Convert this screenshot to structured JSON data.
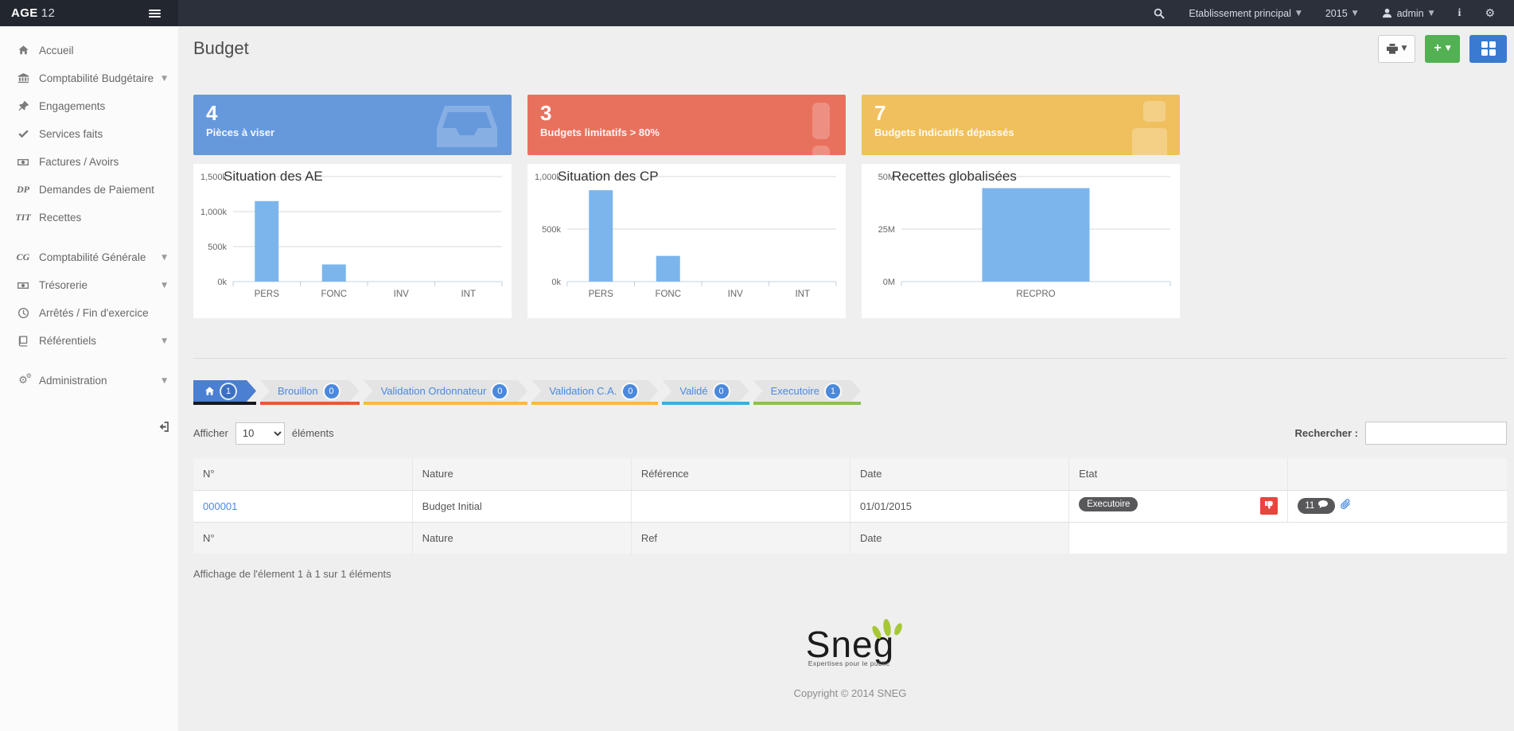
{
  "topbar": {
    "brand": "AGE",
    "brand_suffix": "12",
    "establishment": "Etablissement principal",
    "year": "2015",
    "user": "admin"
  },
  "sidebar": {
    "items": [
      {
        "id": "accueil",
        "icon": "home",
        "label": "Accueil"
      },
      {
        "id": "comptabilite-budgetaire",
        "icon": "bank",
        "label": "Comptabilité Budgétaire",
        "caret": true
      },
      {
        "id": "engagements",
        "icon": "pin",
        "label": "Engagements"
      },
      {
        "id": "services-faits",
        "icon": "check",
        "label": "Services faits"
      },
      {
        "id": "factures-avoirs",
        "icon": "money",
        "label": "Factures / Avoirs"
      },
      {
        "id": "demandes-de-paiement",
        "icon": "DP",
        "label": "Demandes de Paiement"
      },
      {
        "id": "recettes",
        "icon": "TIT",
        "label": "Recettes"
      },
      {
        "id": "comptabilite-generale",
        "icon": "CG",
        "label": "Comptabilité Générale",
        "caret": true,
        "gap": true
      },
      {
        "id": "tresorerie",
        "icon": "money",
        "label": "Trésorerie",
        "caret": true
      },
      {
        "id": "arretes-fin-exercice",
        "icon": "clock",
        "label": "Arrêtés / Fin d'exercice"
      },
      {
        "id": "referentiels",
        "icon": "book",
        "label": "Référentiels",
        "caret": true
      },
      {
        "id": "administration",
        "icon": "gears",
        "label": "Administration",
        "caret": true,
        "gap": true
      }
    ]
  },
  "header": {
    "title": "Budget"
  },
  "cards": [
    {
      "value": "4",
      "label": "Pièces à viser",
      "color": "#6699dc",
      "icon": "inbox"
    },
    {
      "value": "3",
      "label": "Budgets limitatifs > 80%",
      "color": "#e8715e",
      "icon": "thermometer"
    },
    {
      "value": "7",
      "label": "Budgets Indicatifs dépassés",
      "color": "#f0c05e",
      "icon": "blocks"
    }
  ],
  "chart_data": [
    {
      "type": "bar",
      "title": "Situation des AE",
      "categories": [
        "PERS",
        "FONC",
        "INV",
        "INT"
      ],
      "values": [
        1150,
        245,
        0,
        0
      ],
      "unit": "k",
      "ylim": [
        0,
        1500
      ],
      "yticks": [
        {
          "v": 0,
          "label": "0k"
        },
        {
          "v": 500,
          "label": "500k"
        },
        {
          "v": 1000,
          "label": "1,000k"
        },
        {
          "v": 1500,
          "label": "1,500k"
        }
      ],
      "grid": true,
      "legend": "none"
    },
    {
      "type": "bar",
      "title": "Situation des CP",
      "categories": [
        "PERS",
        "FONC",
        "INV",
        "INT"
      ],
      "values": [
        870,
        245,
        0,
        0
      ],
      "unit": "k",
      "ylim": [
        0,
        1000
      ],
      "yticks": [
        {
          "v": 0,
          "label": "0k"
        },
        {
          "v": 500,
          "label": "500k"
        },
        {
          "v": 1000,
          "label": "1,000k"
        }
      ],
      "grid": true,
      "legend": "none"
    },
    {
      "type": "bar",
      "title": "Recettes globalisées",
      "categories": [
        "RECPRO"
      ],
      "values": [
        44.5
      ],
      "unit": "M",
      "ylim": [
        0,
        50
      ],
      "yticks": [
        {
          "v": 0,
          "label": "0M"
        },
        {
          "v": 25,
          "label": "25M"
        },
        {
          "v": 50,
          "label": "50M"
        }
      ],
      "grid": true,
      "legend": "none"
    }
  ],
  "workflow": {
    "tabs": [
      {
        "id": "accueil",
        "icon": "home",
        "label": "",
        "count": "1",
        "underline": "#16181d",
        "active": true
      },
      {
        "id": "brouillon",
        "label": "Brouillon",
        "count": "0",
        "underline": "#e9573f"
      },
      {
        "id": "validation-ordonnateur",
        "label": "Validation Ordonnateur",
        "count": "0",
        "underline": "#f6bb42"
      },
      {
        "id": "validation-ca",
        "label": "Validation C.A.",
        "count": "0",
        "underline": "#f6bb42"
      },
      {
        "id": "valide",
        "label": "Validé",
        "count": "0",
        "underline": "#3bafda"
      },
      {
        "id": "executoire",
        "label": "Executoire",
        "count": "1",
        "underline": "#8cc152"
      }
    ]
  },
  "table": {
    "length_before": "Afficher",
    "length_value": "10",
    "length_after": "éléments",
    "search_label": "Rechercher :",
    "search_value": "",
    "columns": [
      "N°",
      "Nature",
      "Référence",
      "Date",
      "Etat",
      ""
    ],
    "rows": [
      {
        "no": "000001",
        "nature": "Budget Initial",
        "reference": "",
        "date": "01/01/2015",
        "etat": "Executoire",
        "comments": "11"
      }
    ],
    "footer": [
      "N°",
      "Nature",
      "Ref",
      "Date"
    ],
    "info": "Affichage de l'élement 1 à 1 sur 1 éléments"
  },
  "footer": {
    "logo": "Sneg",
    "logo_sub": "Expertises pour le public",
    "copyright": "Copyright © 2014 SNEG"
  },
  "colors": {
    "accent": "#4a89dc",
    "bar": "#7cb5ec",
    "tab_active": "#4a7fd1",
    "badge_gray": "#58585a",
    "red_action": "#e9443d",
    "green_button": "#52b152",
    "blue_button": "#3a7ad0"
  }
}
